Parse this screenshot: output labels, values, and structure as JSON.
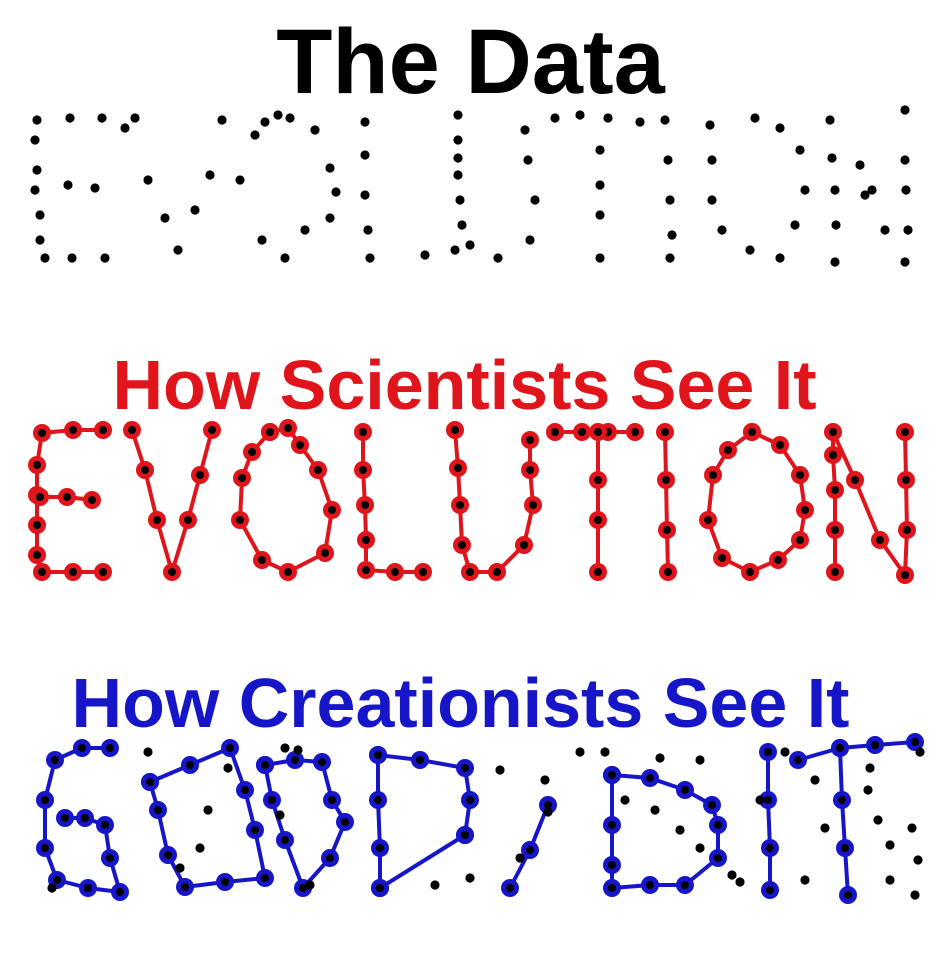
{
  "titles": {
    "data": "The Data",
    "scientists": "How Scientists See It",
    "creationists": "How Creationists See It"
  },
  "colors": {
    "dots": "#000000",
    "scientists": "#e0141b",
    "creationists": "#1616c8"
  }
}
